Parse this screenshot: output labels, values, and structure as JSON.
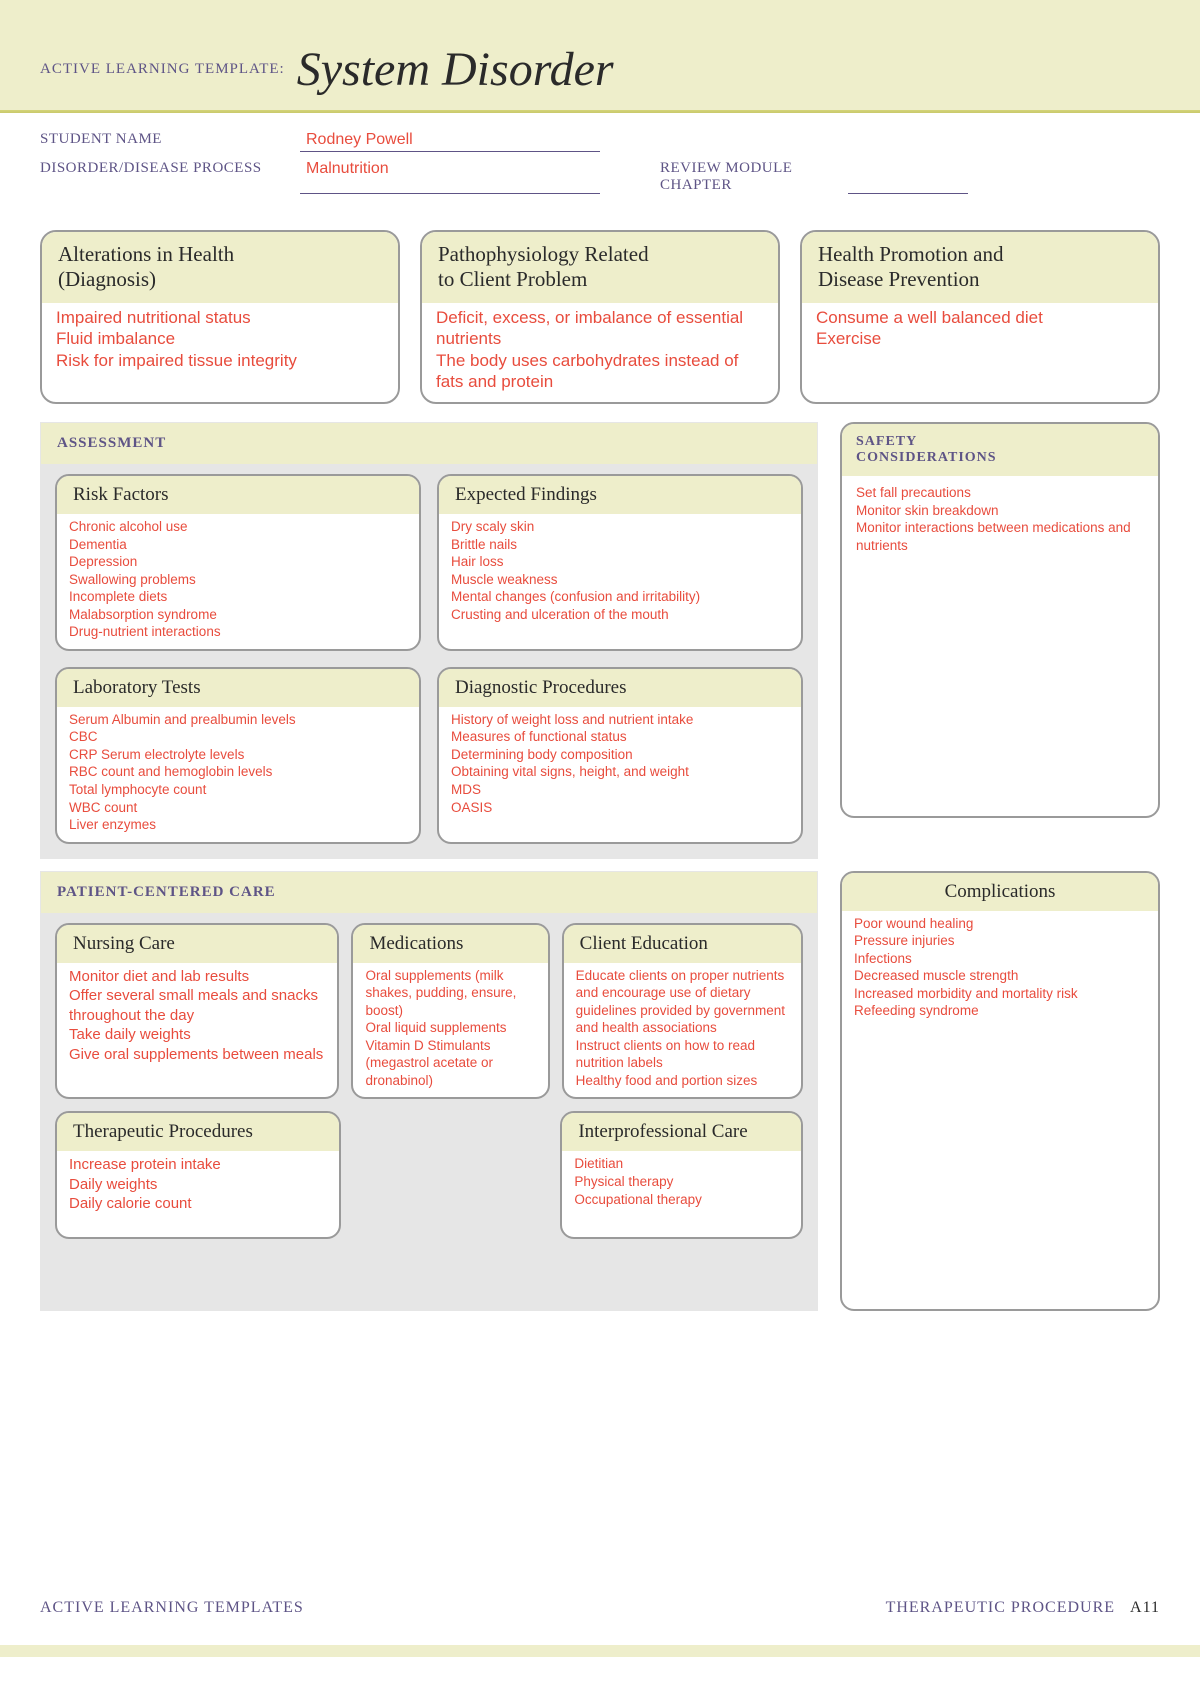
{
  "colors": {
    "band": "#eeeecb",
    "section_bg": "#e6e6e6",
    "border": "#9a9a9a",
    "label": "#5e5486",
    "answer": "#e84c3d",
    "title": "#2a2a2a"
  },
  "header": {
    "prefix": "ACTIVE LEARNING TEMPLATE:",
    "title": "System Disorder"
  },
  "form": {
    "student_name_label": "STUDENT NAME",
    "student_name_value": "Rodney Powell",
    "disorder_label": "DISORDER/DISEASE PROCESS",
    "disorder_value": "Malnutrition",
    "review_label_l1": "REVIEW MODULE",
    "review_label_l2": "CHAPTER",
    "review_value": ""
  },
  "top3": {
    "alterations": {
      "title_l1": "Alterations in Health",
      "title_l2": "(Diagnosis)",
      "body": "Impaired nutritional status\nFluid imbalance\nRisk for impaired tissue integrity"
    },
    "patho": {
      "title_l1": "Pathophysiology Related",
      "title_l2": "to Client Problem",
      "body": "Deficit, excess, or imbalance of essential nutrients\nThe body uses carbohydrates instead of fats and protein"
    },
    "promo": {
      "title_l1": "Health Promotion and",
      "title_l2": "Disease Prevention",
      "body": "Consume a well balanced diet\nExercise"
    }
  },
  "assessment": {
    "section_label": "ASSESSMENT",
    "risk": {
      "title": "Risk Factors",
      "body": "Chronic alcohol use\nDementia\nDepression\nSwallowing problems\nIncomplete diets\nMalabsorption syndrome\nDrug-nutrient interactions"
    },
    "expected": {
      "title": "Expected Findings",
      "body": "Dry scaly skin\nBrittle nails\nHair loss\nMuscle weakness\nMental changes (confusion and irritability)\nCrusting and ulceration of the mouth"
    },
    "labs": {
      "title": "Laboratory Tests",
      "body": "Serum Albumin and prealbumin levels\nCBC\nCRP Serum electrolyte levels\nRBC count and hemoglobin levels\nTotal lymphocyte count\n WBC count\nLiver enzymes"
    },
    "diag": {
      "title": "Diagnostic Procedures",
      "body": "History of weight loss and nutrient intake\nMeasures of functional status\nDetermining body composition\nObtaining vital signs, height, and weight\nMDS\nOASIS"
    }
  },
  "safety": {
    "label_l1": "SAFETY",
    "label_l2": "CONSIDERATIONS",
    "body": "Set fall precautions\nMonitor skin breakdown\nMonitor interactions between medications and nutrients"
  },
  "pcc": {
    "section_label": "PATIENT-CENTERED CARE",
    "nursing": {
      "title": "Nursing Care",
      "body": "Monitor diet and lab results\nOffer several small meals and snacks throughout the day\nTake daily weights\nGive oral supplements between meals"
    },
    "meds": {
      "title": "Medications",
      "body": "Oral supplements (milk shakes, pudding, ensure, boost)\nOral liquid supplements\nVitamin D Stimulants (megastrol acetate or dronabinol)"
    },
    "edu": {
      "title": "Client Education",
      "body": "Educate clients on proper nutrients and encourage use of dietary guidelines provided by government and health associations\nInstruct clients on how to read nutrition labels\n Healthy food and portion sizes"
    },
    "therapeutic": {
      "title": "Therapeutic Procedures",
      "body": "Increase protein intake\nDaily weights\nDaily calorie count"
    },
    "interprofessional": {
      "title": "Interprofessional Care",
      "body": "Dietitian\nPhysical therapy\nOccupational therapy"
    }
  },
  "complications": {
    "title": "Complications",
    "body": "Poor wound healing\nPressure injuries\nInfections\n Decreased muscle strength\nIncreased morbidity and mortality risk\n Refeeding syndrome"
  },
  "footer": {
    "left": "ACTIVE LEARNING TEMPLATES",
    "right": "THERAPEUTIC PROCEDURE",
    "page": "A11"
  }
}
